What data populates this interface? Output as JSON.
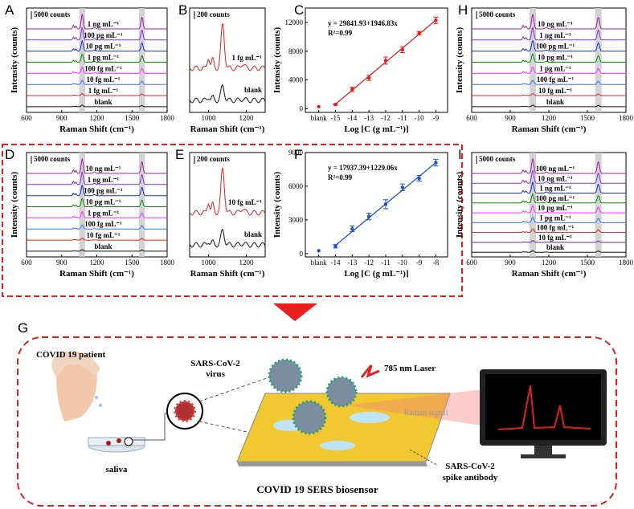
{
  "chart_data": [
    {
      "type": "spectra",
      "label": "A",
      "xlabel": "Raman Shift (cm⁻¹)",
      "ylabel": "Intensity (counts)",
      "scale_label": "5000 counts",
      "xlim": [
        600,
        1800
      ],
      "xticks": [
        600,
        900,
        1200,
        1500,
        1800
      ],
      "bands": [
        [
          1050,
          1100
        ],
        [
          1560,
          1610
        ]
      ],
      "series": [
        {
          "name": "1 ng mL⁻¹",
          "color": "#a0209a"
        },
        {
          "name": "100 pg mL⁻¹",
          "color": "#8a2be2"
        },
        {
          "name": "10 pg mL⁻¹",
          "color": "#1a2ad0"
        },
        {
          "name": "1 pg mL⁻¹",
          "color": "#0a8a0a"
        },
        {
          "name": "100 fg mL⁻¹",
          "color": "#ff30ff"
        },
        {
          "name": "10 fg mL⁻¹",
          "color": "#3a6cff"
        },
        {
          "name": "1 fg mL⁻¹",
          "color": "#e02020"
        },
        {
          "name": "blank",
          "color": "#111111"
        }
      ]
    },
    {
      "type": "spectra",
      "label": "B",
      "xlabel": "Raman Shift (cm⁻¹)",
      "scale_label": "200 counts",
      "xlim": [
        900,
        1300
      ],
      "xticks": [
        1000,
        1200
      ],
      "series": [
        {
          "name": "1 fg mL⁻¹",
          "color": "#e02020"
        },
        {
          "name": "blank",
          "color": "#111111"
        }
      ]
    },
    {
      "type": "scatter",
      "label": "C",
      "xlabel": "Log [C (g mL⁻¹)]",
      "ylabel": "Intensity (counts)",
      "annotation": [
        "y = 29841.93+1946.83x",
        "R²=0.99"
      ],
      "fit": {
        "intercept": 29841.93,
        "slope": 1946.83
      },
      "color": "#e02020",
      "x": [
        -16,
        -15,
        -14,
        -13,
        -12,
        -11,
        -10,
        -9
      ],
      "values": [
        300,
        600,
        2700,
        4300,
        6700,
        8200,
        10500,
        12300
      ],
      "errors": [
        0,
        100,
        300,
        350,
        500,
        400,
        250,
        450
      ],
      "xlim": [
        -16.8,
        -8.3
      ],
      "xticks": [
        {
          "value": -16,
          "label": "blank"
        },
        -15,
        -14,
        -13,
        -12,
        -11,
        -10,
        -9
      ],
      "ylim": [
        -500,
        14000
      ],
      "yticks": [
        0,
        4000,
        8000,
        12000
      ]
    },
    {
      "type": "spectra",
      "label": "H",
      "xlabel": "Raman Shift (cm⁻¹)",
      "ylabel": "Intensity (counts)",
      "scale_label": "5000 counts",
      "xlim": [
        600,
        1800
      ],
      "xticks": [
        600,
        900,
        1200,
        1500,
        1800
      ],
      "bands": [
        [
          1050,
          1100
        ],
        [
          1560,
          1610
        ]
      ],
      "series": [
        {
          "name": "10 ng mL⁻¹",
          "color": "#a0209a"
        },
        {
          "name": "1 ng mL⁻¹",
          "color": "#8a2be2"
        },
        {
          "name": "100 pg mL⁻¹",
          "color": "#1a2ad0"
        },
        {
          "name": "10 pg mL⁻¹",
          "color": "#0a8a0a"
        },
        {
          "name": "1 pg mL⁻¹",
          "color": "#ff30ff"
        },
        {
          "name": "100 fg mL⁻¹",
          "color": "#3a6cff"
        },
        {
          "name": "10 fg mL⁻¹",
          "color": "#e02020"
        },
        {
          "name": "blank",
          "color": "#111111"
        }
      ]
    },
    {
      "type": "spectra",
      "label": "D",
      "xlabel": "Raman Shift (cm⁻¹)",
      "ylabel": "Intensity (counts)",
      "scale_label": "5000 counts",
      "xlim": [
        600,
        1800
      ],
      "xticks": [
        600,
        900,
        1200,
        1500,
        1800
      ],
      "bands": [
        [
          1050,
          1100
        ],
        [
          1560,
          1610
        ]
      ],
      "series": [
        {
          "name": "10 ng mL⁻¹",
          "color": "#a0209a"
        },
        {
          "name": "1 ng mL⁻¹",
          "color": "#8a2be2"
        },
        {
          "name": "100 pg mL⁻¹",
          "color": "#1a2ad0"
        },
        {
          "name": "10 pg mL⁻¹",
          "color": "#0a8a0a"
        },
        {
          "name": "1 pg mL⁻¹",
          "color": "#ff30ff"
        },
        {
          "name": "100 fg mL⁻¹",
          "color": "#3a6cff"
        },
        {
          "name": "10 fg mL⁻¹",
          "color": "#e02020"
        },
        {
          "name": "blank",
          "color": "#111111"
        }
      ]
    },
    {
      "type": "spectra",
      "label": "E",
      "xlabel": "Raman Shift (cm⁻¹)",
      "scale_label": "200 counts",
      "xlim": [
        900,
        1300
      ],
      "xticks": [
        1000,
        1200
      ],
      "series": [
        {
          "name": "10 fg mL⁻¹",
          "color": "#e02020"
        },
        {
          "name": "blank",
          "color": "#111111"
        }
      ]
    },
    {
      "type": "scatter",
      "label": "F",
      "xlabel": "Log [C (g mL⁻¹)]",
      "ylabel": "Intensity (counts)",
      "annotation": [
        "y = 17937.39+1229.06x",
        "R²=0.99"
      ],
      "fit": {
        "intercept": 17937.39,
        "slope": 1229.06
      },
      "color": "#2050d0",
      "x": [
        -15,
        -14,
        -13,
        -12,
        -11,
        -10,
        -9,
        -8
      ],
      "values": [
        250,
        650,
        2200,
        3300,
        4400,
        5900,
        6700,
        8100
      ],
      "errors": [
        0,
        150,
        250,
        300,
        400,
        300,
        250,
        300
      ],
      "xlim": [
        -15.8,
        -7.3
      ],
      "xticks": [
        {
          "value": -15,
          "label": "blank"
        },
        -14,
        -13,
        -12,
        -11,
        -10,
        -9,
        -8
      ],
      "ylim": [
        -300,
        9000
      ],
      "yticks": [
        0,
        3000,
        6000,
        9000
      ]
    },
    {
      "type": "spectra",
      "label": "I",
      "xlabel": "Raman Shift (cm⁻¹)",
      "ylabel": "Intensity (counts)",
      "scale_label": "5000 counts",
      "xlim": [
        600,
        1800
      ],
      "xticks": [
        600,
        900,
        1200,
        1500,
        1800
      ],
      "bands": [
        [
          1050,
          1100
        ],
        [
          1560,
          1610
        ]
      ],
      "series": [
        {
          "name": "100 ng mL⁻¹",
          "color": "#a0209a"
        },
        {
          "name": "10 ng mL⁻¹",
          "color": "#8a2be2"
        },
        {
          "name": "1 ng mL⁻¹",
          "color": "#1a2ad0"
        },
        {
          "name": "100 pg mL⁻¹",
          "color": "#0a8a0a"
        },
        {
          "name": "10 pg mL⁻¹",
          "color": "#ff30ff"
        },
        {
          "name": "1 pg mL⁻¹",
          "color": "#3a6cff"
        },
        {
          "name": "100 fg mL⁻¹",
          "color": "#e02020"
        },
        {
          "name": "10 fg mL⁻¹",
          "color": "#7a2090"
        },
        {
          "name": "blank",
          "color": "#111111"
        }
      ]
    }
  ],
  "diagram": {
    "label": "G",
    "patient": "COVID 19 patient",
    "sample": "saliva",
    "virus": [
      "SARS-CoV-2",
      "virus"
    ],
    "laser": "785 nm Laser",
    "signal": "Raman signal",
    "antibody": [
      "SARS-CoV-2",
      "spike antibody"
    ],
    "caption": "COVID 19 SERS biosensor"
  }
}
